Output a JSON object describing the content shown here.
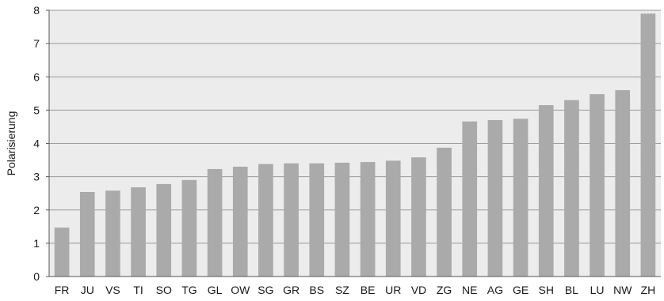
{
  "chart_data": {
    "type": "bar",
    "title": "",
    "xlabel": "",
    "ylabel": "Polarisierung",
    "ylim": [
      0,
      8
    ],
    "yticks": [
      0,
      1,
      2,
      3,
      4,
      5,
      6,
      7,
      8
    ],
    "grid": true,
    "legend": "none",
    "categories": [
      "FR",
      "JU",
      "VS",
      "TI",
      "SO",
      "TG",
      "GL",
      "OW",
      "SG",
      "GR",
      "BS",
      "SZ",
      "BE",
      "UR",
      "VD",
      "ZG",
      "NE",
      "AG",
      "GE",
      "SH",
      "BL",
      "LU",
      "NW",
      "ZH"
    ],
    "values": [
      1.47,
      2.54,
      2.58,
      2.68,
      2.78,
      2.9,
      3.23,
      3.3,
      3.38,
      3.4,
      3.4,
      3.42,
      3.44,
      3.48,
      3.58,
      3.87,
      4.66,
      4.7,
      4.74,
      5.15,
      5.3,
      5.48,
      5.6,
      7.9
    ],
    "colors": {
      "plot_background": "#ececec",
      "bar": "#aaaaaa",
      "grid": "#9a9a9a",
      "axis": "#555555"
    }
  }
}
